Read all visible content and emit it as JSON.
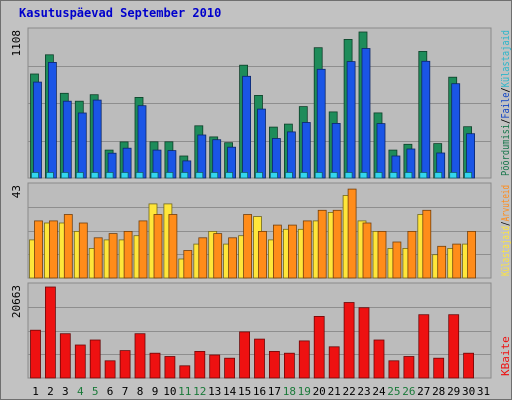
{
  "title": "Kasutuspäevad September 2010",
  "colors": {
    "background": "#c2c2c2",
    "plot_background": "#bcbcbc",
    "frame_border": "#6f6f6f",
    "grid": "#8e8e8e",
    "title": "#0000cc",
    "weekday_label": "#000000",
    "weekend_label": "#1b7a3a"
  },
  "chart_data": [
    {
      "type": "bar",
      "panel": "top",
      "ytick_max_label": "1108",
      "ylim": [
        0,
        1108
      ],
      "grid": true,
      "legend_position": "right-vertical",
      "legend_separator": "/",
      "categories": [
        "1",
        "2",
        "3",
        "4",
        "5",
        "6",
        "7",
        "8",
        "9",
        "10",
        "11",
        "12",
        "13",
        "14",
        "15",
        "16",
        "17",
        "18",
        "19",
        "20",
        "21",
        "22",
        "23",
        "24",
        "25",
        "26",
        "27",
        "28",
        "29",
        "30",
        "31"
      ],
      "series": [
        {
          "name": "Pöördumisi",
          "color": "#1e8c5a",
          "values": [
            789,
            935,
            643,
            583,
            632,
            212,
            274,
            612,
            275,
            275,
            167,
            396,
            312,
            268,
            856,
            627,
            386,
            409,
            542,
            989,
            502,
            1052,
            1108,
            494,
            212,
            256,
            961,
            261,
            765,
            389,
            null
          ]
        },
        {
          "name": "Faile",
          "color": "#1a55e6",
          "values": [
            728,
            877,
            583,
            493,
            591,
            188,
            226,
            549,
            212,
            208,
            130,
            326,
            291,
            234,
            772,
            523,
            300,
            350,
            421,
            825,
            414,
            883,
            983,
            413,
            167,
            220,
            886,
            190,
            716,
            336,
            null
          ]
        },
        {
          "name": "Külastajaid",
          "color": "#33d6ee",
          "values": [
            42,
            42,
            42,
            42,
            42,
            42,
            42,
            42,
            42,
            42,
            42,
            42,
            42,
            42,
            42,
            42,
            42,
            42,
            42,
            42,
            42,
            42,
            42,
            42,
            42,
            42,
            42,
            42,
            42,
            42,
            null
          ]
        }
      ]
    },
    {
      "type": "bar",
      "panel": "middle",
      "ytick_max_label": "43",
      "ylim": [
        0,
        43
      ],
      "grid": true,
      "legend_position": "right-vertical",
      "legend_separator": "/",
      "categories": [
        "1",
        "2",
        "3",
        "4",
        "5",
        "6",
        "7",
        "8",
        "9",
        "10",
        "11",
        "12",
        "13",
        "14",
        "15",
        "16",
        "17",
        "18",
        "19",
        "20",
        "21",
        "22",
        "23",
        "24",
        "25",
        "26",
        "27",
        "28",
        "29",
        "30",
        "31"
      ],
      "series": [
        {
          "name": "Külastajaid",
          "color": "#ffe63a",
          "values": [
            18,
            26,
            26,
            22,
            14,
            18,
            18,
            20,
            35,
            35,
            9,
            16,
            22,
            16,
            20,
            29,
            18,
            23,
            23,
            27,
            31,
            39,
            27,
            22,
            14,
            14,
            30,
            11,
            14,
            16,
            null
          ]
        },
        {
          "name": "Arvuteid",
          "color": "#ff8c1a",
          "values": [
            27,
            27,
            30,
            26,
            19,
            21,
            22,
            27,
            30,
            30,
            13,
            19,
            21,
            19,
            30,
            22,
            25,
            25,
            27,
            32,
            32,
            42,
            26,
            22,
            17,
            22,
            32,
            15,
            16,
            22,
            null
          ]
        }
      ]
    },
    {
      "type": "bar",
      "panel": "bottom",
      "ytick_max_label": "20663",
      "ylim": [
        0,
        20663
      ],
      "grid": true,
      "legend_position": "right-vertical",
      "categories": [
        "1",
        "2",
        "3",
        "4",
        "5",
        "6",
        "7",
        "8",
        "9",
        "10",
        "11",
        "12",
        "13",
        "14",
        "15",
        "16",
        "17",
        "18",
        "19",
        "20",
        "21",
        "22",
        "23",
        "24",
        "25",
        "26",
        "27",
        "28",
        "29",
        "30",
        "31"
      ],
      "series": [
        {
          "name": "KBaite",
          "color": "#ee1111",
          "values": [
            10856,
            20663,
            10062,
            7490,
            8637,
            3899,
            6217,
            10062,
            5631,
            4891,
            2778,
            6032,
            5232,
            4489,
            10469,
            8838,
            6032,
            5631,
            8422,
            13989,
            7086,
            17152,
            15959,
            8637,
            3899,
            4891,
            14382,
            4489,
            14382,
            5631,
            null
          ]
        }
      ]
    }
  ],
  "x_axis": {
    "labels": [
      "1",
      "2",
      "3",
      "4",
      "5",
      "6",
      "7",
      "8",
      "9",
      "10",
      "11",
      "12",
      "13",
      "14",
      "15",
      "16",
      "17",
      "18",
      "19",
      "20",
      "21",
      "22",
      "23",
      "24",
      "25",
      "26",
      "27",
      "28",
      "29",
      "30",
      "31"
    ],
    "weekend_days": [
      "4",
      "5",
      "11",
      "12",
      "18",
      "19",
      "25",
      "26"
    ]
  }
}
